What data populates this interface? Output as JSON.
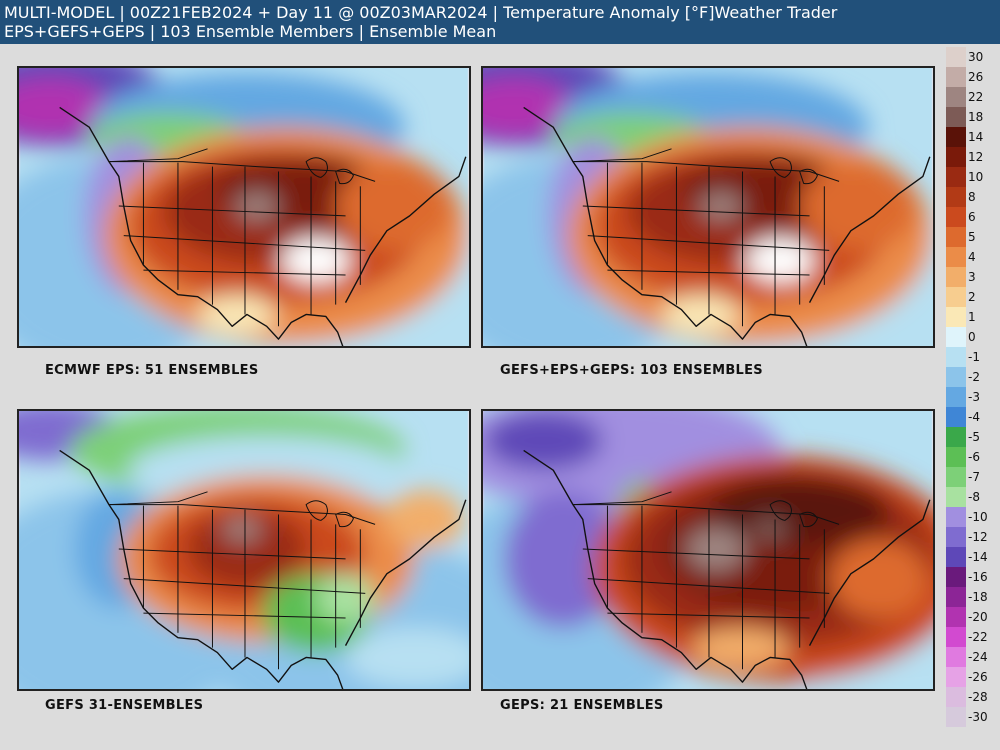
{
  "header": {
    "line1": "MULTI-MODEL | 00Z21FEB2024 + Day 11 @ 00Z03MAR2024 | Temperature Anomaly [°F]",
    "brand": "Weather Trader",
    "line2": "EPS+GEFS+GEPS | 103 Ensemble Members | Ensemble Mean"
  },
  "panels": [
    {
      "caption": "ECMWF EPS: 51 ENSEMBLES",
      "pattern": "warm_central"
    },
    {
      "caption": "GEFS+EPS+GEPS: 103 ENSEMBLES",
      "pattern": "warm_central"
    },
    {
      "caption": "GEFS 31-ENSEMBLES",
      "pattern": "cool_southeast"
    },
    {
      "caption": "GEPS: 21 ENSEMBLES",
      "pattern": "very_warm_east"
    }
  ],
  "legend": {
    "labels": [
      "30",
      "26",
      "22",
      "18",
      "14",
      "12",
      "10",
      "8",
      "6",
      "5",
      "4",
      "3",
      "2",
      "1",
      "0",
      "-1",
      "-2",
      "-3",
      "-4",
      "-5",
      "-6",
      "-7",
      "-8",
      "-10",
      "-12",
      "-14",
      "-16",
      "-18",
      "-20",
      "-22",
      "-24",
      "-26",
      "-28",
      "-30"
    ],
    "colors": [
      "#ddd0cb",
      "#c3aca7",
      "#9e8581",
      "#7d5b56",
      "#5a1208",
      "#7a1a0a",
      "#9a2a12",
      "#b23a16",
      "#cb4a1e",
      "#dd6a2e",
      "#eb8c48",
      "#f2ae6a",
      "#f7cd8f",
      "#fae8b6",
      "#dff4fb",
      "#b7e0f2",
      "#8cc4ea",
      "#64a8e2",
      "#3f86d6",
      "#3aa84a",
      "#5cbf55",
      "#7dd078",
      "#a8e1a0",
      "#a18fe0",
      "#7f6cd0",
      "#5e48b8",
      "#6a1a7c",
      "#8c2596",
      "#b133b0",
      "#d24ad0",
      "#e07ae0",
      "#e6a2e6",
      "#dbbcdf",
      "#d6cadc"
    ]
  }
}
